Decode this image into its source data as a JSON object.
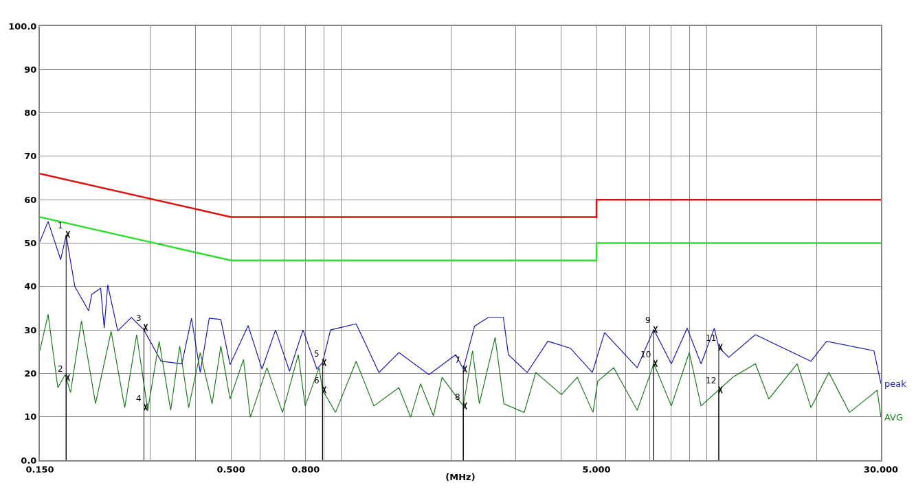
{
  "chart_data": {
    "type": "line",
    "xlabel": "(MHz)",
    "log": "x",
    "xlim": [
      0.15,
      30
    ],
    "ylim": [
      0,
      100
    ],
    "xticks": [
      {
        "value": 0.15,
        "label": "0.150"
      },
      {
        "value": 0.3,
        "label": null
      },
      {
        "value": 0.4,
        "label": null
      },
      {
        "value": 0.5,
        "label": "0.500"
      },
      {
        "value": 0.6,
        "label": null
      },
      {
        "value": 0.7,
        "label": null
      },
      {
        "value": 0.8,
        "label": "0.800"
      },
      {
        "value": 0.9,
        "label": null
      },
      {
        "value": 1,
        "label": null
      },
      {
        "value": 2,
        "label": null
      },
      {
        "value": 3,
        "label": null
      },
      {
        "value": 4,
        "label": null
      },
      {
        "value": 5,
        "label": "5.000"
      },
      {
        "value": 6,
        "label": null
      },
      {
        "value": 7,
        "label": null
      },
      {
        "value": 8,
        "label": null
      },
      {
        "value": 9,
        "label": null
      },
      {
        "value": 10,
        "label": null
      },
      {
        "value": 20,
        "label": null
      },
      {
        "value": 30,
        "label": "30.000"
      }
    ],
    "yticks": [
      {
        "value": 0,
        "label": "0.0"
      },
      10,
      20,
      30,
      40,
      50,
      60,
      70,
      80,
      90,
      {
        "value": 100,
        "label": "100.0"
      }
    ],
    "grid": true,
    "legend": false,
    "series": [
      {
        "color": "#dd1111",
        "x": [
          0.15,
          0.5,
          5,
          5,
          30
        ],
        "values": [
          66,
          56,
          56,
          60,
          60
        ]
      },
      {
        "color": "#33dd33",
        "x": [
          0.15,
          0.5,
          5,
          5,
          30
        ],
        "values": [
          56,
          46,
          46,
          50,
          50
        ]
      },
      {
        "name": "peak",
        "color": "#1a1aaa",
        "x": [
          0.15,
          0.158,
          0.171,
          0.177,
          0.187,
          0.204,
          0.208,
          0.22,
          0.225,
          0.23,
          0.245,
          0.267,
          0.289,
          0.322,
          0.367,
          0.39,
          0.412,
          0.436,
          0.469,
          0.497,
          0.557,
          0.608,
          0.662,
          0.723,
          0.787,
          0.859,
          0.89,
          0.936,
          1.1,
          1.27,
          1.44,
          1.74,
          2.06,
          2.16,
          2.32,
          2.53,
          2.78,
          2.87,
          3.23,
          3.68,
          4.24,
          4.87,
          5.26,
          6.46,
          7.17,
          8.01,
          8.85,
          9.66,
          10.5,
          10.8,
          11.5,
          13.6,
          19.3,
          21.3,
          28.7,
          30
        ],
        "values": [
          50.3,
          55,
          46.2,
          51.8,
          40,
          34.4,
          38.2,
          39.6,
          30.4,
          40.4,
          29.8,
          32.9,
          30,
          22.8,
          22.2,
          32.7,
          20.2,
          32.7,
          32.4,
          22,
          31,
          21,
          30,
          20.5,
          30,
          21,
          22.5,
          30,
          31.4,
          20.2,
          24.8,
          19.7,
          24.3,
          21,
          30.9,
          32.9,
          32.9,
          24.3,
          20.2,
          27.4,
          25.8,
          20.2,
          29.4,
          21.3,
          30.1,
          22.2,
          30.4,
          22.2,
          30.4,
          26,
          23.7,
          28.9,
          22.8,
          27.4,
          25.2,
          17.6
        ]
      },
      {
        "name": "AVG",
        "color": "#1f7a1f",
        "x": [
          0.15,
          0.158,
          0.168,
          0.176,
          0.182,
          0.195,
          0.213,
          0.235,
          0.256,
          0.276,
          0.296,
          0.318,
          0.342,
          0.362,
          0.383,
          0.412,
          0.444,
          0.469,
          0.497,
          0.541,
          0.565,
          0.627,
          0.692,
          0.764,
          0.798,
          0.871,
          0.89,
          0.966,
          1.1,
          1.23,
          1.44,
          1.55,
          1.65,
          1.79,
          1.89,
          2.16,
          2.29,
          2.39,
          2.64,
          2.79,
          3.17,
          3.41,
          4.01,
          4.43,
          4.89,
          5.04,
          5.57,
          6.46,
          7.04,
          7.17,
          8.01,
          8.97,
          9.66,
          10.8,
          11.8,
          13.6,
          14.8,
          17.7,
          19.3,
          21.6,
          24.6,
          29.3,
          30
        ],
        "values": [
          25.2,
          33.6,
          16.7,
          19.7,
          15.6,
          32.1,
          13,
          29.7,
          12.1,
          28.9,
          11.5,
          27.4,
          11.5,
          26.3,
          12.1,
          24.8,
          13,
          26.3,
          14.1,
          23.2,
          9.9,
          21.3,
          11,
          24.3,
          12.5,
          21.3,
          16.2,
          11,
          22.8,
          12.5,
          16.7,
          9.9,
          17.6,
          10.2,
          19.1,
          12.5,
          25.2,
          13,
          28.3,
          13,
          11,
          20.2,
          15.1,
          19.1,
          11,
          18.2,
          21.3,
          11.5,
          20.2,
          22.3,
          12.5,
          24.8,
          12.5,
          16.2,
          19.1,
          22.2,
          14.1,
          22.2,
          12.1,
          20.2,
          11,
          16.1,
          9.9
        ]
      }
    ],
    "annotations": [
      {
        "text": "1",
        "x": 0.177,
        "y": 52
      },
      {
        "text": "2",
        "x": 0.177,
        "y": 19
      },
      {
        "text": "3",
        "x": 0.289,
        "y": 30.6
      },
      {
        "text": "4",
        "x": 0.289,
        "y": 12.2
      },
      {
        "text": "5",
        "x": 0.89,
        "y": 22.5
      },
      {
        "text": "6",
        "x": 0.89,
        "y": 16.2
      },
      {
        "text": "7",
        "x": 2.16,
        "y": 21
      },
      {
        "text": "8",
        "x": 2.16,
        "y": 12.5
      },
      {
        "text": "9",
        "x": 7.17,
        "y": 30.1
      },
      {
        "text": "10",
        "x": 7.17,
        "y": 22.3
      },
      {
        "text": "11",
        "x": 10.8,
        "y": 26
      },
      {
        "text": "12",
        "x": 10.8,
        "y": 16.2
      }
    ]
  }
}
